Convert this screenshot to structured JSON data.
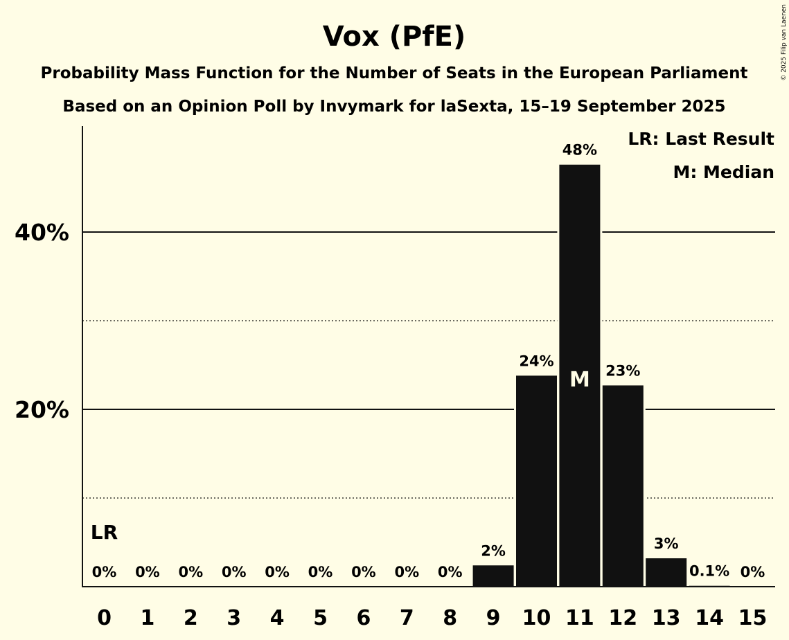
{
  "chart_data": {
    "type": "bar",
    "title": "Vox (PfE)",
    "subtitle1": "Probability Mass Function for the Number of Seats in the European Parliament",
    "subtitle2": "Based on an Opinion Poll by Invymark for laSexta, 15–19 September 2025",
    "categories": [
      "0",
      "1",
      "2",
      "3",
      "4",
      "5",
      "6",
      "7",
      "8",
      "9",
      "10",
      "11",
      "12",
      "13",
      "14",
      "15"
    ],
    "values": [
      0,
      0,
      0,
      0,
      0,
      0,
      0,
      0,
      0,
      2.4,
      23.8,
      47.6,
      22.7,
      3.2,
      0.1,
      0
    ],
    "data_labels": [
      "0%",
      "0%",
      "0%",
      "0%",
      "0%",
      "0%",
      "0%",
      "0%",
      "0%",
      "2%",
      "24%",
      "48%",
      "23%",
      "3%",
      "0.1%",
      "0%"
    ],
    "ylim": [
      0,
      52
    ],
    "yticks": [
      {
        "value": 20,
        "label": "20%"
      },
      {
        "value": 40,
        "label": "40%"
      }
    ],
    "minor_gridlines": [
      10,
      30
    ],
    "grid": true,
    "last_result_index": 0,
    "last_result_marker": "LR",
    "median_index": 11,
    "median_marker": "M",
    "legend": {
      "placement": "top-right",
      "entries": [
        "LR: Last Result",
        "M: Median"
      ]
    },
    "bar_color": "#111111",
    "background_color": "#fffde6"
  },
  "copyright": "© 2025 Filip van Laenen"
}
